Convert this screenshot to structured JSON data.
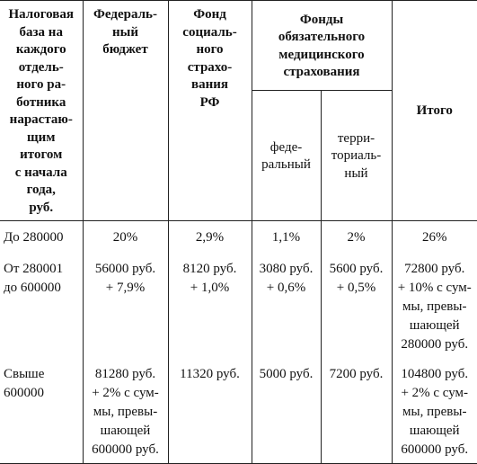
{
  "header": {
    "base": [
      "Налоговая",
      "база на",
      "каждого",
      "отдель-",
      "ного ра-",
      "ботника",
      "нарастаю-",
      "щим",
      "итогом",
      "с начала",
      "года,",
      "руб."
    ],
    "federal": [
      "Федераль-",
      "ный",
      "бюджет"
    ],
    "social": [
      "Фонд",
      "социаль-",
      "ного",
      "страхо-",
      "вания",
      "РФ"
    ],
    "medical": [
      "Фонды",
      "обязательного",
      "медицинского",
      "страхования"
    ],
    "medical_federal": [
      "феде-",
      "ральный"
    ],
    "medical_territorial": [
      "терри-",
      "ториаль-",
      "ный"
    ],
    "total": [
      "Итого"
    ]
  },
  "table": {
    "rows": [
      [
        [
          "До 280000"
        ],
        [
          "20%"
        ],
        [
          "2,9%"
        ],
        [
          "1,1%"
        ],
        [
          "2%"
        ],
        [
          "26%"
        ]
      ],
      [
        [
          "От 280001",
          "до 600000"
        ],
        [
          "56000 руб.",
          "+ 7,9%"
        ],
        [
          "8120 руб.",
          "+ 1,0%"
        ],
        [
          "3080 руб.",
          "+ 0,6%"
        ],
        [
          "5600 руб.",
          "+ 0,5%"
        ],
        [
          "72800 руб.",
          "+ 10% с сум-",
          "мы, превы-",
          "шающей",
          "280000 руб."
        ]
      ],
      [
        [
          "Свыше",
          "600000"
        ],
        [
          "81280 руб.",
          "+ 2% с сум-",
          "мы, превы-",
          "шающей",
          "600000 руб."
        ],
        [
          "11320 руб."
        ],
        [
          "5000 руб."
        ],
        [
          "7200 руб."
        ],
        [
          "104800 руб.",
          "+ 2% с сум-",
          "мы, превы-",
          "шающей",
          "600000 руб."
        ]
      ]
    ]
  }
}
